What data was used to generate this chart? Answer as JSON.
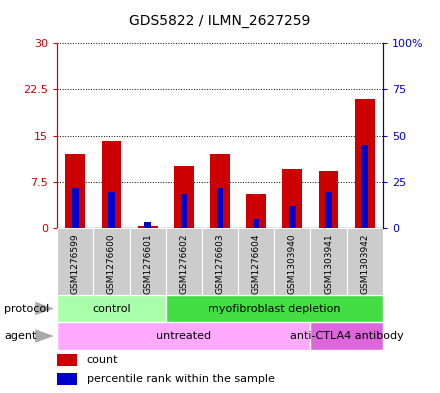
{
  "title": "GDS5822 / ILMN_2627259",
  "samples": [
    "GSM1276599",
    "GSM1276600",
    "GSM1276601",
    "GSM1276602",
    "GSM1276603",
    "GSM1276604",
    "GSM1303940",
    "GSM1303941",
    "GSM1303942"
  ],
  "count_values": [
    12.0,
    14.2,
    0.3,
    10.0,
    12.0,
    5.5,
    9.5,
    9.2,
    21.0
  ],
  "percentile_values": [
    6.5,
    5.8,
    1.0,
    5.5,
    6.5,
    1.5,
    3.5,
    5.8,
    13.5
  ],
  "bar_color_red": "#cc0000",
  "bar_color_blue": "#0000cc",
  "ylim_left": [
    0,
    30
  ],
  "ylim_right": [
    0,
    100
  ],
  "yticks_left": [
    0,
    7.5,
    15,
    22.5,
    30
  ],
  "ytick_labels_left": [
    "0",
    "7.5",
    "15",
    "22.5",
    "30"
  ],
  "yticks_right": [
    0,
    25,
    50,
    75,
    100
  ],
  "ytick_labels_right": [
    "0",
    "25",
    "50",
    "75",
    "100%"
  ],
  "protocol_groups": [
    {
      "label": "control",
      "start": 0,
      "end": 3,
      "color": "#aaffaa"
    },
    {
      "label": "myofibroblast depletion",
      "start": 3,
      "end": 9,
      "color": "#44dd44"
    }
  ],
  "agent_groups": [
    {
      "label": "untreated",
      "start": 0,
      "end": 7,
      "color": "#ffaaff"
    },
    {
      "label": "anti-CTLA4 antibody",
      "start": 7,
      "end": 9,
      "color": "#dd66dd"
    }
  ],
  "legend_count_label": "count",
  "legend_percentile_label": "percentile rank within the sample",
  "axis_color_left": "#cc0000",
  "axis_color_right": "#0000cc",
  "xtick_bg": "#cccccc"
}
